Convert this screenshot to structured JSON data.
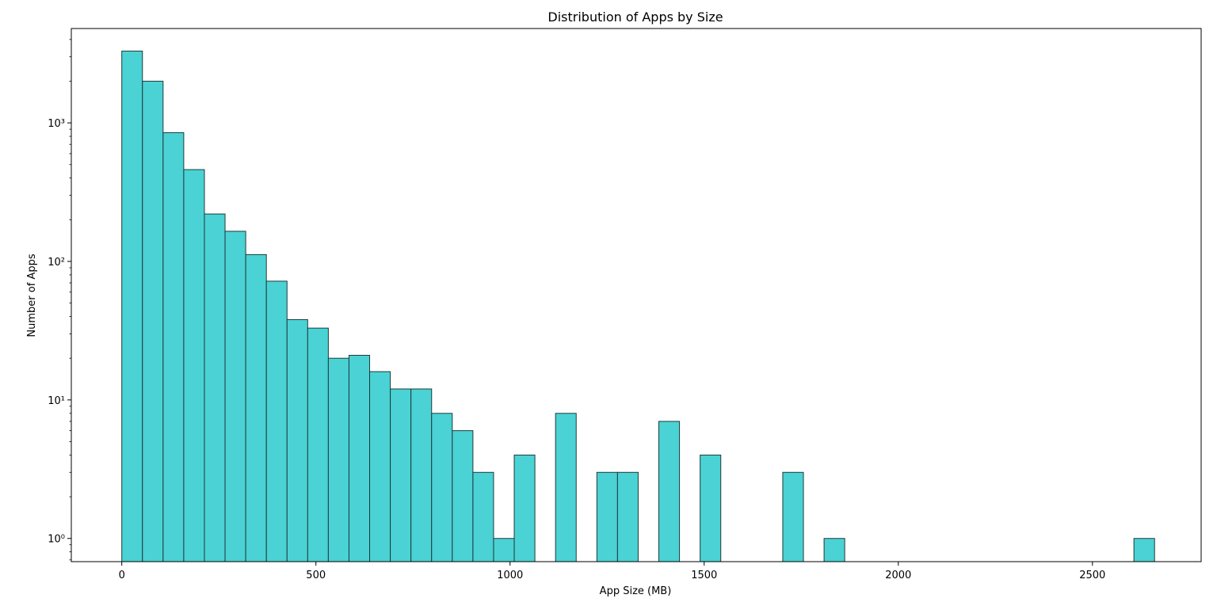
{
  "chart_data": {
    "type": "bar",
    "title": "Distribution of Apps by Size",
    "xlabel": "App Size (MB)",
    "ylabel": "Number of Apps",
    "yscale": "log",
    "xlim": [
      -130,
      2780
    ],
    "ylim": [
      0.68,
      4800
    ],
    "grid": false,
    "bar_color": "#4ad2d4",
    "edge_color": "#1f3b3b",
    "bin_edges": [
      0,
      53.2,
      106.4,
      159.6,
      212.8,
      266.0,
      319.2,
      372.4,
      425.6,
      478.8,
      532.0,
      585.2,
      638.4,
      691.6,
      744.8,
      798.0,
      851.2,
      904.4,
      957.6,
      1010.8,
      1064.0,
      1117.2,
      1170.4,
      1223.6,
      1276.8,
      1330.0,
      1383.2,
      1436.4,
      1489.6,
      1542.8,
      1596.0,
      1649.2,
      1702.4,
      1755.6,
      1808.8,
      1862.0,
      1915.2,
      1968.4,
      2021.6,
      2074.8,
      2128.0,
      2181.2,
      2234.4,
      2287.6,
      2340.8,
      2394.0,
      2447.2,
      2500.4,
      2553.6,
      2606.8,
      2660.0
    ],
    "values": [
      3300,
      2000,
      850,
      460,
      220,
      165,
      112,
      72,
      38,
      33,
      20,
      21,
      16,
      12,
      12,
      8,
      6,
      3,
      1,
      4,
      0,
      8,
      0,
      3,
      3,
      0,
      7,
      0,
      4,
      0,
      0,
      0,
      3,
      0,
      1,
      0,
      0,
      0,
      0,
      0,
      0,
      0,
      0,
      0,
      0,
      0,
      0,
      0,
      0,
      1
    ],
    "x_ticks": [
      0,
      500,
      1000,
      1500,
      2000,
      2500
    ],
    "x_tick_labels": [
      "0",
      "500",
      "1000",
      "1500",
      "2000",
      "2500"
    ],
    "y_ticks": [
      1,
      10,
      100,
      1000
    ],
    "y_tick_labels": [
      "10⁰",
      "10¹",
      "10²",
      "10³"
    ]
  }
}
